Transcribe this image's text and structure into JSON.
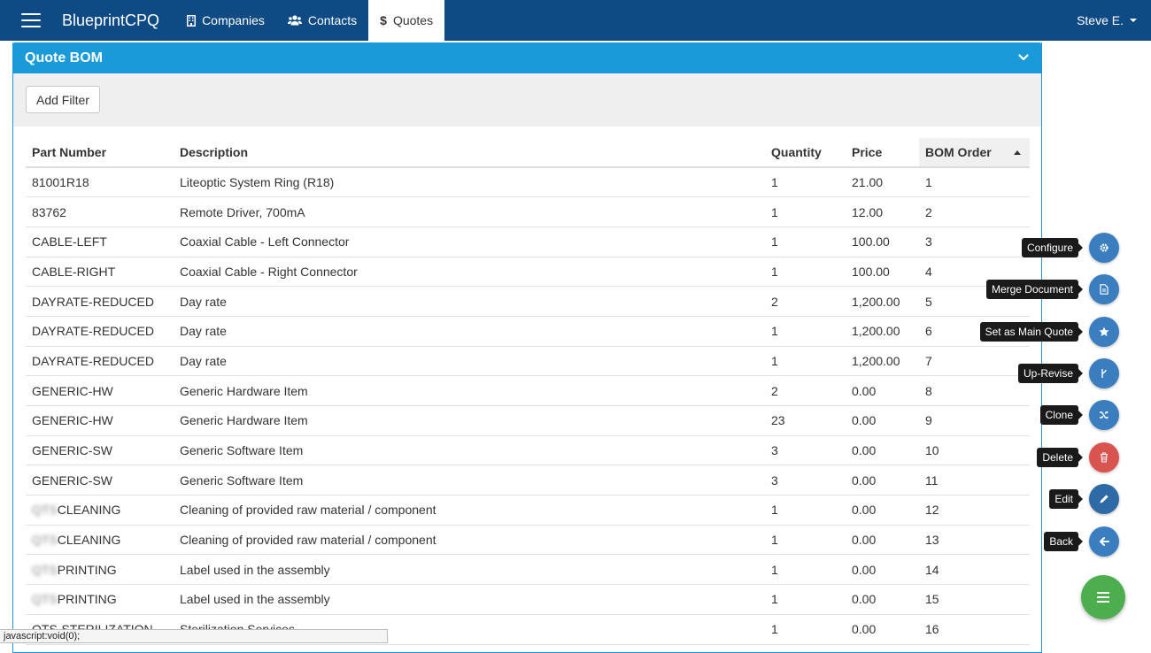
{
  "nav": {
    "brand": "BlueprintCPQ",
    "items": [
      {
        "label": "Companies",
        "icon": "building-icon"
      },
      {
        "label": "Contacts",
        "icon": "users-icon"
      },
      {
        "label": "Quotes",
        "icon": "dollar-icon",
        "active": true
      }
    ],
    "user": "Steve E."
  },
  "panel": {
    "title": "Quote BOM",
    "add_filter_label": "Add Filter"
  },
  "table": {
    "headers": {
      "part_number": "Part Number",
      "description": "Description",
      "quantity": "Quantity",
      "price": "Price",
      "bom_order": "BOM Order"
    },
    "rows": [
      {
        "part": "81001R18",
        "desc": "Liteoptic System Ring (R18)",
        "qty": "1",
        "price": "21.00",
        "order": "1"
      },
      {
        "part": "83762",
        "desc": "Remote Driver, 700mA",
        "qty": "1",
        "price": "12.00",
        "order": "2"
      },
      {
        "part": "CABLE-LEFT",
        "desc": "Coaxial Cable - Left Connector",
        "qty": "1",
        "price": "100.00",
        "order": "3"
      },
      {
        "part": "CABLE-RIGHT",
        "desc": "Coaxial Cable - Right Connector",
        "qty": "1",
        "price": "100.00",
        "order": "4"
      },
      {
        "part": "DAYRATE-REDUCED",
        "desc": "Day rate",
        "qty": "2",
        "price": "1,200.00",
        "order": "5"
      },
      {
        "part": "DAYRATE-REDUCED",
        "desc": "Day rate",
        "qty": "1",
        "price": "1,200.00",
        "order": "6"
      },
      {
        "part": "DAYRATE-REDUCED",
        "desc": "Day rate",
        "qty": "1",
        "price": "1,200.00",
        "order": "7"
      },
      {
        "part": "GENERIC-HW",
        "desc": "Generic Hardware Item",
        "qty": "2",
        "price": "0.00",
        "order": "8"
      },
      {
        "part": "GENERIC-HW",
        "desc": "Generic Hardware Item",
        "qty": "23",
        "price": "0.00",
        "order": "9"
      },
      {
        "part": "GENERIC-SW",
        "desc": "Generic Software Item",
        "qty": "3",
        "price": "0.00",
        "order": "10"
      },
      {
        "part": "GENERIC-SW",
        "desc": "Generic Software Item",
        "qty": "3",
        "price": "0.00",
        "order": "11"
      },
      {
        "part_blur": "QTS",
        "part": "CLEANING",
        "desc": "Cleaning of provided raw material / component",
        "qty": "1",
        "price": "0.00",
        "order": "12"
      },
      {
        "part_blur": "QTS",
        "part": "CLEANING",
        "desc": "Cleaning of provided raw material / component",
        "qty": "1",
        "price": "0.00",
        "order": "13"
      },
      {
        "part_blur": "QTS",
        "part": "PRINTING",
        "desc": "Label used in the assembly",
        "qty": "1",
        "price": "0.00",
        "order": "14"
      },
      {
        "part_blur": "QTS",
        "part": "PRINTING",
        "desc": "Label used in the assembly",
        "qty": "1",
        "price": "0.00",
        "order": "15"
      },
      {
        "part": "QTS-STERILIZATION",
        "desc": "Sterilization Services",
        "qty": "1",
        "price": "0.00",
        "order": "16"
      }
    ]
  },
  "actions": [
    {
      "label": "Configure",
      "icon": "gear-icon",
      "color": "#3a7ebf"
    },
    {
      "label": "Merge Document",
      "icon": "document-icon",
      "color": "#3a7ebf"
    },
    {
      "label": "Set as Main Quote",
      "icon": "star-icon",
      "color": "#3a7ebf"
    },
    {
      "label": "Up-Revise",
      "icon": "branch-icon",
      "color": "#3a7ebf"
    },
    {
      "label": "Clone",
      "icon": "shuffle-icon",
      "color": "#3a7ebf"
    },
    {
      "label": "Delete",
      "icon": "trash-icon",
      "color": "#d9534f"
    },
    {
      "label": "Edit",
      "icon": "pencil-icon",
      "color": "#2e6aa5"
    },
    {
      "label": "Back",
      "icon": "arrow-left-icon",
      "color": "#3a7ebf"
    }
  ],
  "main_fab": {
    "icon": "menu-icon",
    "color": "#4cae4c"
  },
  "status_bar": "javascript:void(0);"
}
